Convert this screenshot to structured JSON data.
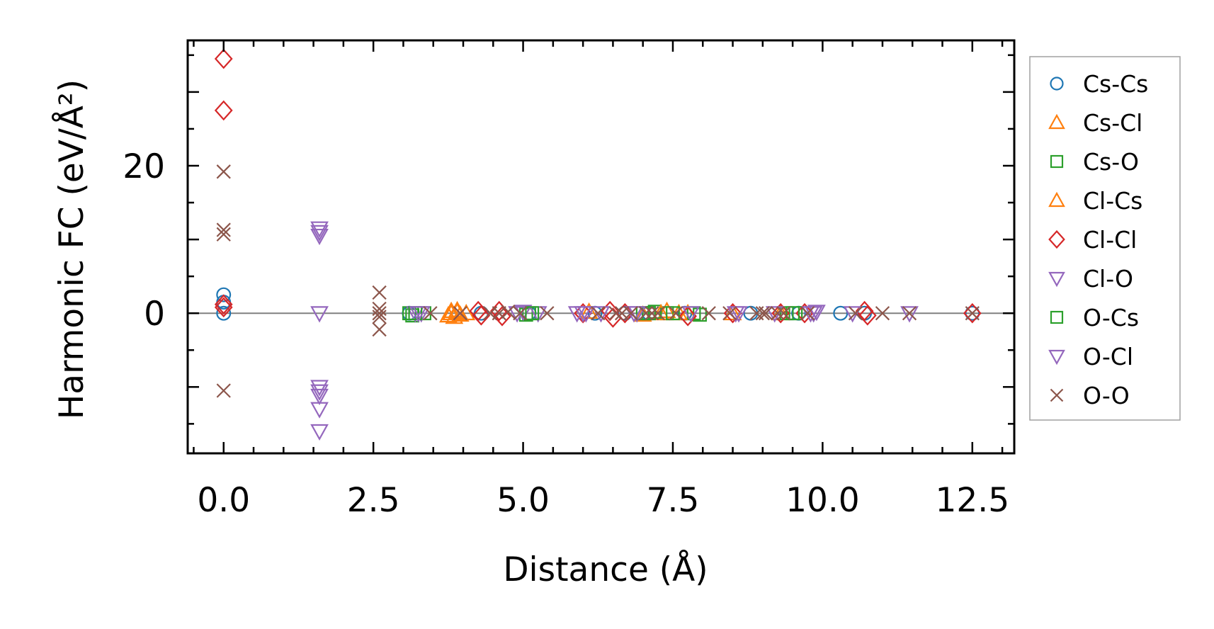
{
  "chart_data": {
    "type": "scatter",
    "xlabel": "Distance (Å)",
    "ylabel": "Harmonic FC (eV/Å²)",
    "xlim": [
      -0.6,
      13.2
    ],
    "ylim": [
      -19.0,
      37.0
    ],
    "x_ticks": [
      "0.0",
      "2.5",
      "5.0",
      "7.5",
      "10.0",
      "12.5"
    ],
    "y_ticks": [
      "0",
      "20"
    ],
    "legend_position": "right-outside",
    "zero_line": true,
    "series": [
      {
        "name": "Cs-Cs",
        "marker": "circle",
        "color": "#1f77b4",
        "points": [
          [
            0,
            0
          ],
          [
            0,
            1.5
          ],
          [
            0,
            2.5
          ],
          [
            3.1,
            0
          ],
          [
            4.3,
            0
          ],
          [
            5.1,
            0
          ],
          [
            6.2,
            0
          ],
          [
            6.7,
            0
          ],
          [
            7.1,
            0
          ],
          [
            7.7,
            0
          ],
          [
            8.8,
            0
          ],
          [
            9.6,
            0
          ],
          [
            10.3,
            0
          ],
          [
            10.7,
            0
          ],
          [
            12.5,
            0
          ]
        ]
      },
      {
        "name": "Cs-Cl",
        "marker": "triangle-up",
        "color": "#ff7f0e",
        "points": [
          [
            3.75,
            -0.3
          ],
          [
            3.8,
            0.3
          ],
          [
            3.85,
            -0.5
          ],
          [
            3.9,
            0.4
          ],
          [
            3.95,
            -0.2
          ],
          [
            4.05,
            0
          ],
          [
            6.1,
            0.2
          ],
          [
            7.0,
            -0.2
          ],
          [
            7.4,
            0.3
          ],
          [
            7.75,
            0
          ],
          [
            8.5,
            0
          ],
          [
            9.3,
            0
          ]
        ]
      },
      {
        "name": "Cs-O",
        "marker": "square",
        "color": "#2ca02c",
        "points": [
          [
            3.1,
            0
          ],
          [
            3.15,
            -0.3
          ],
          [
            3.35,
            0
          ],
          [
            5.05,
            -0.2
          ],
          [
            5.1,
            0
          ],
          [
            7.0,
            0
          ],
          [
            7.2,
            0.2
          ],
          [
            7.4,
            0
          ],
          [
            7.85,
            0
          ],
          [
            7.95,
            -0.2
          ],
          [
            9.4,
            0
          ],
          [
            9.55,
            0
          ]
        ]
      },
      {
        "name": "Cl-Cs",
        "marker": "triangle-up",
        "color": "#ff7f0e",
        "points": [
          [
            3.8,
            0
          ],
          [
            3.9,
            0.2
          ],
          [
            7.3,
            0
          ],
          [
            7.6,
            0
          ]
        ]
      },
      {
        "name": "Cl-Cl",
        "marker": "diamond",
        "color": "#d62728",
        "points": [
          [
            0,
            34.5
          ],
          [
            0,
            27.5
          ],
          [
            0,
            1.2
          ],
          [
            0,
            0.8
          ],
          [
            4.25,
            0.3
          ],
          [
            4.3,
            -0.3
          ],
          [
            4.6,
            0.3
          ],
          [
            4.65,
            -0.4
          ],
          [
            6.0,
            0
          ],
          [
            6.45,
            0.3
          ],
          [
            6.5,
            -0.6
          ],
          [
            6.7,
            0
          ],
          [
            7.75,
            -0.4
          ],
          [
            8.5,
            0
          ],
          [
            9.3,
            0
          ],
          [
            9.7,
            0
          ],
          [
            10.7,
            0.3
          ],
          [
            10.75,
            -0.3
          ],
          [
            12.5,
            0
          ]
        ]
      },
      {
        "name": "Cl-O",
        "marker": "triangle-down",
        "color": "#9467bd",
        "points": [
          [
            1.6,
            11.5
          ],
          [
            1.6,
            11.0
          ],
          [
            1.6,
            10.5
          ],
          [
            1.6,
            0
          ],
          [
            1.6,
            -10.0
          ],
          [
            1.6,
            -10.6
          ],
          [
            1.6,
            -11.2
          ],
          [
            1.6,
            -13.0
          ],
          [
            1.6,
            -16.0
          ],
          [
            3.2,
            0
          ],
          [
            3.3,
            0
          ],
          [
            4.9,
            0
          ],
          [
            5.0,
            0.2
          ],
          [
            5.25,
            0
          ],
          [
            5.9,
            0
          ],
          [
            6.05,
            0
          ],
          [
            6.3,
            0
          ],
          [
            6.85,
            0
          ],
          [
            7.8,
            0
          ],
          [
            8.55,
            0
          ],
          [
            8.6,
            0
          ],
          [
            9.2,
            0
          ],
          [
            9.8,
            0
          ],
          [
            9.9,
            0.2
          ],
          [
            10.5,
            0
          ],
          [
            11.45,
            0
          ]
        ]
      },
      {
        "name": "O-Cs",
        "marker": "square",
        "color": "#2ca02c",
        "points": [
          [
            3.2,
            0
          ],
          [
            5.15,
            0
          ],
          [
            7.1,
            0
          ],
          [
            7.5,
            0
          ],
          [
            9.5,
            0
          ]
        ]
      },
      {
        "name": "O-Cl",
        "marker": "triangle-down",
        "color": "#9467bd",
        "points": [
          [
            3.25,
            0
          ],
          [
            6.0,
            0
          ],
          [
            6.9,
            0
          ],
          [
            9.85,
            0
          ]
        ]
      },
      {
        "name": "O-O",
        "marker": "x",
        "color": "#8c564b",
        "points": [
          [
            0,
            19.2
          ],
          [
            0,
            11.3
          ],
          [
            0,
            10.7
          ],
          [
            0,
            -10.5
          ],
          [
            2.6,
            2.8
          ],
          [
            2.6,
            0.6
          ],
          [
            2.6,
            0
          ],
          [
            2.6,
            -0.5
          ],
          [
            2.6,
            -2.2
          ],
          [
            3.45,
            0
          ],
          [
            3.95,
            0
          ],
          [
            4.45,
            0
          ],
          [
            4.6,
            0
          ],
          [
            4.75,
            0.2
          ],
          [
            4.95,
            0
          ],
          [
            5.4,
            0
          ],
          [
            6.25,
            0
          ],
          [
            6.55,
            0
          ],
          [
            6.65,
            0
          ],
          [
            6.8,
            0
          ],
          [
            7.05,
            0
          ],
          [
            7.15,
            0
          ],
          [
            7.25,
            0
          ],
          [
            7.55,
            0
          ],
          [
            8.1,
            0
          ],
          [
            8.45,
            0
          ],
          [
            8.9,
            0
          ],
          [
            9.0,
            0
          ],
          [
            9.05,
            0
          ],
          [
            9.25,
            0
          ],
          [
            9.35,
            0
          ],
          [
            9.75,
            0
          ],
          [
            10.55,
            0
          ],
          [
            11.0,
            0
          ],
          [
            11.45,
            0
          ],
          [
            12.5,
            0
          ]
        ]
      }
    ]
  }
}
